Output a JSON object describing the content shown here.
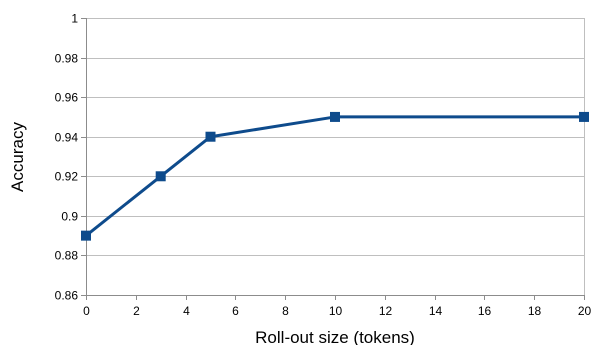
{
  "chart_data": {
    "type": "line",
    "title": "",
    "xlabel": "Roll-out size (tokens)",
    "ylabel": "Accuracy",
    "xlim": [
      0,
      20
    ],
    "ylim": [
      0.86,
      1
    ],
    "xticks": [
      0,
      2,
      4,
      6,
      8,
      10,
      12,
      14,
      16,
      18,
      20
    ],
    "yticks": [
      0.86,
      0.88,
      0.9,
      0.92,
      0.94,
      0.96,
      0.98,
      1
    ],
    "xtick_labels": [
      "0",
      "2",
      "4",
      "6",
      "8",
      "10",
      "12",
      "14",
      "16",
      "18",
      "20"
    ],
    "ytick_labels": [
      "0.86",
      "0.88",
      "0.9",
      "0.92",
      "0.94",
      "0.96",
      "0.98",
      "1"
    ],
    "grid": true,
    "legend": "none",
    "series": [
      {
        "x": [
          0,
          3,
          5,
          10,
          20
        ],
        "y": [
          0.89,
          0.92,
          0.94,
          0.95,
          0.95
        ],
        "color": "#0e4b8c",
        "marker": "square"
      }
    ]
  },
  "colors": {
    "grid": "#bfbfbf",
    "axis": "#8c8c8c",
    "series": "#0e4b8c"
  }
}
